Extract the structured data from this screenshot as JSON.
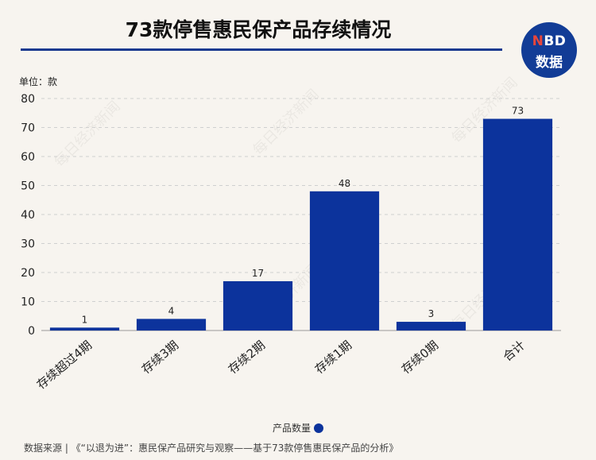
{
  "header": {
    "title": "73款停售惠民保产品存续情况",
    "logo_top": "NBD",
    "logo_bottom": "数据"
  },
  "unit_label": "单位：款",
  "watermark": "每日经济新闻",
  "legend_label": "产品数量",
  "source": "数据来源 | 《“以退为进”：惠民保产品研究与观察——基于73款停售惠民保产品的分析》",
  "colors": {
    "bar": "#0c339c",
    "title_rule": "#1b3a8f"
  },
  "chart_data": {
    "type": "bar",
    "title": "73款停售惠民保产品存续情况",
    "ylabel": "单位：款",
    "categories": [
      "存续超过4期",
      "存续3期",
      "存续2期",
      "存续1期",
      "存续0期",
      "合计"
    ],
    "series": [
      {
        "name": "产品数量",
        "values": [
          1,
          4,
          17,
          48,
          3,
          73
        ]
      }
    ],
    "ylim": [
      0,
      80
    ],
    "yticks": [
      0,
      10,
      20,
      30,
      40,
      50,
      60,
      70,
      80
    ],
    "grid": true,
    "legend": "bottom-center"
  }
}
